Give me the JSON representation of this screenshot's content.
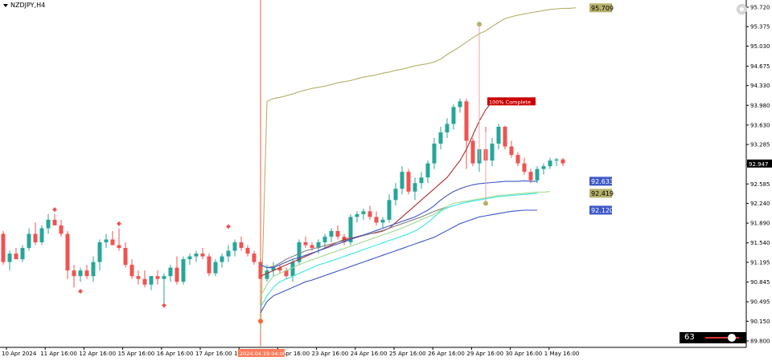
{
  "symbol": "NZDJPY,H4",
  "colors": {
    "bull": "#26a69a",
    "bear": "#ef5350",
    "upper_band": "#b5b06a",
    "red_line": "#b22a2a",
    "green_line": "#9fd98f",
    "cyan_line": "#37e6e6",
    "blue_line": "#3e57c9",
    "gray_line": "#7f7f7f",
    "marker": "#ff6633",
    "vline": "#ff7a5a"
  },
  "price_axis": {
    "ticks": [
      "95.720",
      "95.375",
      "95.030",
      "94.675",
      "94.330",
      "93.980",
      "93.630",
      "93.285",
      "92.935",
      "92.585",
      "92.240",
      "91.890",
      "91.540",
      "91.195",
      "90.845",
      "90.495",
      "90.150",
      "89.800"
    ]
  },
  "time_axis": {
    "ticks": [
      "10 Apr 2024",
      "11 Apr 16:00",
      "12 Apr 16:00",
      "15 Apr 16:00",
      "16 Apr 16:00",
      "17 Apr 16:00",
      "19 Apr 16:00",
      "22 Apr 16:00",
      "23 Apr 16:00",
      "24 Apr 16:00",
      "25 Apr 16:00",
      "26 Apr 16:00",
      "29 Apr 16:00",
      "30 Apr 16:00",
      "1 May 16:00"
    ],
    "highlight": "2024.04.19 04:00"
  },
  "labels": {
    "upper": "95.709",
    "current": "92.947",
    "blue1": "92.633",
    "yellow": "92.419",
    "blue2": "92.120",
    "complete": "100% Complete"
  },
  "slider": {
    "value": "63"
  },
  "chart_data": {
    "type": "candlestick",
    "title": "NZDJPY,H4",
    "ylim": [
      89.8,
      95.72
    ],
    "candles": [
      {
        "o": 91.7,
        "h": 91.75,
        "l": 91.15,
        "c": 91.2
      },
      {
        "o": 91.2,
        "h": 91.4,
        "l": 91.05,
        "c": 91.35
      },
      {
        "o": 91.35,
        "h": 91.45,
        "l": 91.25,
        "c": 91.25
      },
      {
        "o": 91.25,
        "h": 91.5,
        "l": 91.2,
        "c": 91.45
      },
      {
        "o": 91.45,
        "h": 91.8,
        "l": 91.4,
        "c": 91.7
      },
      {
        "o": 91.7,
        "h": 91.9,
        "l": 91.5,
        "c": 91.55
      },
      {
        "o": 91.55,
        "h": 91.85,
        "l": 91.5,
        "c": 91.8
      },
      {
        "o": 91.8,
        "h": 92.05,
        "l": 91.7,
        "c": 91.95
      },
      {
        "o": 91.95,
        "h": 92.05,
        "l": 91.85,
        "c": 91.85
      },
      {
        "o": 91.85,
        "h": 91.95,
        "l": 91.65,
        "c": 91.7
      },
      {
        "o": 91.7,
        "h": 91.75,
        "l": 90.9,
        "c": 91.05
      },
      {
        "o": 91.05,
        "h": 91.15,
        "l": 90.75,
        "c": 90.95
      },
      {
        "o": 90.95,
        "h": 91.1,
        "l": 90.85,
        "c": 91.05
      },
      {
        "o": 91.05,
        "h": 91.15,
        "l": 90.9,
        "c": 90.95
      },
      {
        "o": 90.95,
        "h": 91.3,
        "l": 90.85,
        "c": 91.2
      },
      {
        "o": 91.2,
        "h": 91.6,
        "l": 91.05,
        "c": 91.55
      },
      {
        "o": 91.55,
        "h": 91.7,
        "l": 91.45,
        "c": 91.6
      },
      {
        "o": 91.6,
        "h": 91.75,
        "l": 91.5,
        "c": 91.5
      },
      {
        "o": 91.5,
        "h": 91.8,
        "l": 91.4,
        "c": 91.45
      },
      {
        "o": 91.45,
        "h": 91.55,
        "l": 91.1,
        "c": 91.15
      },
      {
        "o": 91.15,
        "h": 91.25,
        "l": 90.9,
        "c": 90.95
      },
      {
        "o": 90.95,
        "h": 91.05,
        "l": 90.8,
        "c": 90.9
      },
      {
        "o": 90.9,
        "h": 91.05,
        "l": 90.75,
        "c": 90.8
      },
      {
        "o": 90.8,
        "h": 90.95,
        "l": 90.7,
        "c": 90.95
      },
      {
        "o": 90.95,
        "h": 91.05,
        "l": 90.8,
        "c": 90.9
      },
      {
        "o": 90.9,
        "h": 91.0,
        "l": 90.45,
        "c": 90.95
      },
      {
        "o": 90.95,
        "h": 91.15,
        "l": 90.85,
        "c": 91.1
      },
      {
        "o": 91.1,
        "h": 91.3,
        "l": 90.8,
        "c": 90.85
      },
      {
        "o": 90.85,
        "h": 91.3,
        "l": 90.8,
        "c": 91.25
      },
      {
        "o": 91.25,
        "h": 91.35,
        "l": 91.15,
        "c": 91.3
      },
      {
        "o": 91.3,
        "h": 91.4,
        "l": 91.2,
        "c": 91.35
      },
      {
        "o": 91.35,
        "h": 91.45,
        "l": 91.25,
        "c": 91.3
      },
      {
        "o": 91.3,
        "h": 91.35,
        "l": 90.95,
        "c": 91.0
      },
      {
        "o": 91.0,
        "h": 91.25,
        "l": 90.95,
        "c": 91.2
      },
      {
        "o": 91.2,
        "h": 91.35,
        "l": 91.1,
        "c": 91.3
      },
      {
        "o": 91.3,
        "h": 91.5,
        "l": 91.2,
        "c": 91.4
      },
      {
        "o": 91.4,
        "h": 91.6,
        "l": 91.3,
        "c": 91.55
      },
      {
        "o": 91.55,
        "h": 91.65,
        "l": 91.4,
        "c": 91.45
      },
      {
        "o": 91.45,
        "h": 91.5,
        "l": 91.3,
        "c": 91.35
      },
      {
        "o": 91.35,
        "h": 91.4,
        "l": 91.15,
        "c": 91.2
      },
      {
        "o": 91.2,
        "h": 91.25,
        "l": 90.9,
        "c": 90.9
      },
      {
        "o": 90.9,
        "h": 91.15,
        "l": 90.85,
        "c": 91.05
      },
      {
        "o": 91.05,
        "h": 91.2,
        "l": 90.95,
        "c": 91.1
      },
      {
        "o": 91.1,
        "h": 91.15,
        "l": 91.0,
        "c": 91.05
      },
      {
        "o": 91.05,
        "h": 91.1,
        "l": 90.9,
        "c": 90.95
      },
      {
        "o": 90.95,
        "h": 91.25,
        "l": 90.85,
        "c": 91.2
      },
      {
        "o": 91.2,
        "h": 91.6,
        "l": 91.15,
        "c": 91.55
      },
      {
        "o": 91.55,
        "h": 91.65,
        "l": 91.45,
        "c": 91.5
      },
      {
        "o": 91.5,
        "h": 91.55,
        "l": 91.4,
        "c": 91.45
      },
      {
        "o": 91.45,
        "h": 91.6,
        "l": 91.35,
        "c": 91.55
      },
      {
        "o": 91.55,
        "h": 91.7,
        "l": 91.45,
        "c": 91.65
      },
      {
        "o": 91.65,
        "h": 91.8,
        "l": 91.55,
        "c": 91.75
      },
      {
        "o": 91.75,
        "h": 91.85,
        "l": 91.6,
        "c": 91.65
      },
      {
        "o": 91.65,
        "h": 91.7,
        "l": 91.5,
        "c": 91.55
      },
      {
        "o": 91.55,
        "h": 92.05,
        "l": 91.5,
        "c": 92.0
      },
      {
        "o": 92.0,
        "h": 92.1,
        "l": 91.9,
        "c": 92.05
      },
      {
        "o": 92.05,
        "h": 92.15,
        "l": 91.95,
        "c": 92.1
      },
      {
        "o": 92.1,
        "h": 92.2,
        "l": 91.95,
        "c": 92.0
      },
      {
        "o": 92.0,
        "h": 92.1,
        "l": 91.85,
        "c": 91.9
      },
      {
        "o": 91.9,
        "h": 92.0,
        "l": 91.8,
        "c": 91.95
      },
      {
        "o": 91.95,
        "h": 92.4,
        "l": 91.9,
        "c": 92.3
      },
      {
        "o": 92.3,
        "h": 92.6,
        "l": 92.2,
        "c": 92.5
      },
      {
        "o": 92.5,
        "h": 92.9,
        "l": 92.4,
        "c": 92.8
      },
      {
        "o": 92.8,
        "h": 92.85,
        "l": 92.4,
        "c": 92.45
      },
      {
        "o": 92.45,
        "h": 92.7,
        "l": 92.3,
        "c": 92.6
      },
      {
        "o": 92.6,
        "h": 92.8,
        "l": 92.5,
        "c": 92.7
      },
      {
        "o": 92.7,
        "h": 93.0,
        "l": 92.6,
        "c": 92.95
      },
      {
        "o": 92.95,
        "h": 93.4,
        "l": 92.85,
        "c": 93.3
      },
      {
        "o": 93.3,
        "h": 93.6,
        "l": 93.2,
        "c": 93.5
      },
      {
        "o": 93.5,
        "h": 93.75,
        "l": 93.4,
        "c": 93.65
      },
      {
        "o": 93.65,
        "h": 94.0,
        "l": 93.55,
        "c": 93.95
      },
      {
        "o": 93.95,
        "h": 94.1,
        "l": 93.85,
        "c": 94.05
      },
      {
        "o": 94.05,
        "h": 94.1,
        "l": 92.85,
        "c": 93.35
      },
      {
        "o": 93.35,
        "h": 93.4,
        "l": 92.9,
        "c": 92.95
      },
      {
        "o": 92.95,
        "h": 93.3,
        "l": 92.8,
        "c": 93.2
      },
      {
        "o": 93.2,
        "h": 93.6,
        "l": 92.95,
        "c": 93.0
      },
      {
        "o": 93.0,
        "h": 93.4,
        "l": 92.9,
        "c": 93.3
      },
      {
        "o": 93.3,
        "h": 93.65,
        "l": 93.2,
        "c": 93.6
      },
      {
        "o": 93.6,
        "h": 93.62,
        "l": 93.2,
        "c": 93.25
      },
      {
        "o": 93.25,
        "h": 93.35,
        "l": 93.05,
        "c": 93.1
      },
      {
        "o": 93.1,
        "h": 93.15,
        "l": 92.9,
        "c": 92.95
      },
      {
        "o": 92.95,
        "h": 93.05,
        "l": 92.75,
        "c": 92.8
      },
      {
        "o": 92.8,
        "h": 92.85,
        "l": 92.6,
        "c": 92.65
      },
      {
        "o": 92.65,
        "h": 92.9,
        "l": 92.6,
        "c": 92.85
      },
      {
        "o": 92.85,
        "h": 92.95,
        "l": 92.75,
        "c": 92.9
      },
      {
        "o": 92.9,
        "h": 93.05,
        "l": 92.85,
        "c": 93.0
      },
      {
        "o": 93.0,
        "h": 93.05,
        "l": 92.9,
        "c": 93.02
      },
      {
        "o": 93.02,
        "h": 93.05,
        "l": 92.9,
        "c": 92.95
      }
    ],
    "anchor_index": 40,
    "series": [
      {
        "color_key": "upper_band",
        "start": 40,
        "values": [
          89.95,
          94.05,
          94.1,
          94.12,
          94.15,
          94.18,
          94.22,
          94.25,
          94.28,
          94.3,
          94.32,
          94.35,
          94.38,
          94.4,
          94.42,
          94.45,
          94.48,
          94.5,
          94.52,
          94.55,
          94.57,
          94.6,
          94.62,
          94.65,
          94.68,
          94.7,
          94.72,
          94.75,
          94.8,
          94.88,
          94.95,
          95.02,
          95.1,
          95.18,
          95.25,
          95.3,
          95.38,
          95.45,
          95.52,
          95.55,
          95.58,
          95.6,
          95.62,
          95.64,
          95.66,
          95.68,
          95.69,
          95.7,
          95.7,
          95.71
        ]
      },
      {
        "color_key": "red_line",
        "start": 40,
        "values": [
          90.95,
          91.0,
          91.05,
          91.1,
          91.15,
          91.2,
          91.25,
          91.3,
          91.35,
          91.4,
          91.45,
          91.5,
          91.55,
          91.6,
          91.62,
          91.65,
          91.68,
          91.7,
          91.72,
          91.75,
          91.8,
          91.9,
          92.0,
          92.1,
          92.2,
          92.3,
          92.4,
          92.5,
          92.6,
          92.7,
          92.85,
          93.0,
          93.2,
          93.45,
          93.7,
          93.9,
          94.05
        ]
      },
      {
        "color_key": "gray_line",
        "start": 40,
        "values": [
          91.15,
          91.1,
          91.12,
          91.18,
          91.25,
          91.3,
          91.35,
          91.4,
          91.43,
          91.46,
          91.49,
          91.52,
          91.55,
          91.58,
          91.61,
          91.64,
          91.67,
          91.7,
          91.73,
          91.76,
          91.8,
          91.84,
          91.88,
          91.92,
          91.96,
          92.0,
          92.05,
          92.1,
          92.14,
          92.18
        ]
      },
      {
        "color_key": "green_line",
        "start": 40,
        "values": [
          90.6,
          90.8,
          90.95,
          91.0,
          91.05,
          91.1,
          91.15,
          91.2,
          91.24,
          91.28,
          91.32,
          91.36,
          91.4,
          91.44,
          91.48,
          91.52,
          91.56,
          91.6,
          91.64,
          91.68,
          91.72,
          91.76,
          91.8,
          91.85,
          91.9,
          91.95,
          92.0,
          92.05,
          92.12,
          92.18,
          92.24,
          92.26,
          92.28,
          92.3,
          92.32,
          92.34,
          92.36,
          92.38,
          92.39,
          92.4,
          92.41,
          92.42,
          92.43,
          92.44,
          92.44,
          92.45
        ]
      },
      {
        "color_key": "cyan_line",
        "start": 40,
        "values": [
          90.4,
          90.6,
          90.75,
          90.85,
          90.9,
          90.95,
          91.0,
          91.05,
          91.1,
          91.15,
          91.18,
          91.22,
          91.26,
          91.3,
          91.34,
          91.38,
          91.42,
          91.46,
          91.5,
          91.54,
          91.58,
          91.62,
          91.66,
          91.7,
          91.75,
          91.82,
          91.9,
          92.0,
          92.1,
          92.16,
          92.2,
          92.23,
          92.26,
          92.28,
          92.3,
          92.32,
          92.34,
          92.36,
          92.37,
          92.38,
          92.39,
          92.4,
          92.41,
          92.42
        ]
      },
      {
        "color_key": "blue_line",
        "start": 40,
        "values": [
          91.15,
          91.1,
          91.1,
          91.15,
          91.2,
          91.25,
          91.28,
          91.32,
          91.36,
          91.4,
          91.44,
          91.48,
          91.52,
          91.56,
          91.6,
          91.64,
          91.68,
          91.72,
          91.76,
          91.8,
          91.84,
          91.88,
          91.92,
          91.96,
          92.0,
          92.06,
          92.12,
          92.2,
          92.3,
          92.38,
          92.45,
          92.5,
          92.54,
          92.57,
          92.59,
          92.6,
          92.61,
          92.62,
          92.63,
          92.63,
          92.63,
          92.64,
          92.63,
          92.63
        ]
      },
      {
        "color_key": "blue_line",
        "start": 40,
        "values": [
          90.3,
          90.5,
          90.6,
          90.65,
          90.7,
          90.75,
          90.8,
          90.85,
          90.88,
          90.92,
          90.96,
          91.0,
          91.04,
          91.08,
          91.12,
          91.16,
          91.2,
          91.24,
          91.28,
          91.32,
          91.36,
          91.4,
          91.44,
          91.48,
          91.52,
          91.56,
          91.6,
          91.64,
          91.7,
          91.76,
          91.82,
          91.88,
          91.92,
          91.96,
          92.0,
          92.02,
          92.04,
          92.06,
          92.08,
          92.1,
          92.11,
          92.12,
          92.12,
          92.12
        ]
      }
    ],
    "fractal_markers": [
      {
        "index": 8,
        "price": 92.13,
        "dir": "up"
      },
      {
        "index": 12,
        "price": 90.68,
        "dir": "down"
      },
      {
        "index": 18,
        "price": 91.88,
        "dir": "up"
      },
      {
        "index": 25,
        "price": 90.43,
        "dir": "down"
      },
      {
        "index": 35,
        "price": 91.83,
        "dir": "up"
      }
    ],
    "event_dots": [
      {
        "index": 40,
        "price": 90.15,
        "color_key": "marker"
      },
      {
        "index": 74,
        "price": 95.42,
        "color_key": "upper_band"
      },
      {
        "index": 75,
        "price": 92.24,
        "color_key": "upper_band"
      }
    ]
  }
}
